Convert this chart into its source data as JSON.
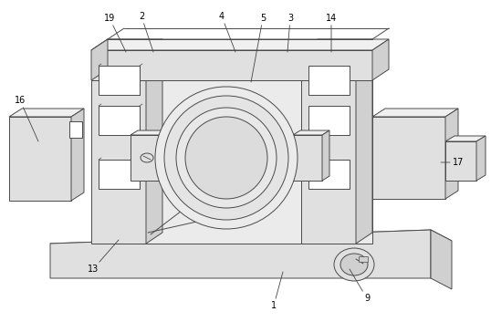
{
  "background_color": "#ffffff",
  "line_color": "#4a4a4a",
  "face_light": "#f0f0f0",
  "face_mid": "#e0e0e0",
  "face_dark": "#d0d0d0",
  "face_darker": "#c4c4c4",
  "white": "#ffffff",
  "figsize": [
    5.38,
    3.53
  ],
  "dpi": 100,
  "labels": [
    [
      "1",
      300,
      335,
      310,
      298
    ],
    [
      "2",
      155,
      18,
      168,
      57
    ],
    [
      "3",
      318,
      20,
      315,
      57
    ],
    [
      "4",
      243,
      18,
      258,
      57
    ],
    [
      "5",
      288,
      20,
      275,
      90
    ],
    [
      "9",
      402,
      327,
      383,
      295
    ],
    [
      "13",
      102,
      295,
      130,
      263
    ],
    [
      "14",
      363,
      20,
      363,
      57
    ],
    [
      "16",
      22,
      110,
      42,
      155
    ],
    [
      "17",
      502,
      178,
      483,
      178
    ],
    [
      "19",
      120,
      20,
      138,
      57
    ]
  ]
}
